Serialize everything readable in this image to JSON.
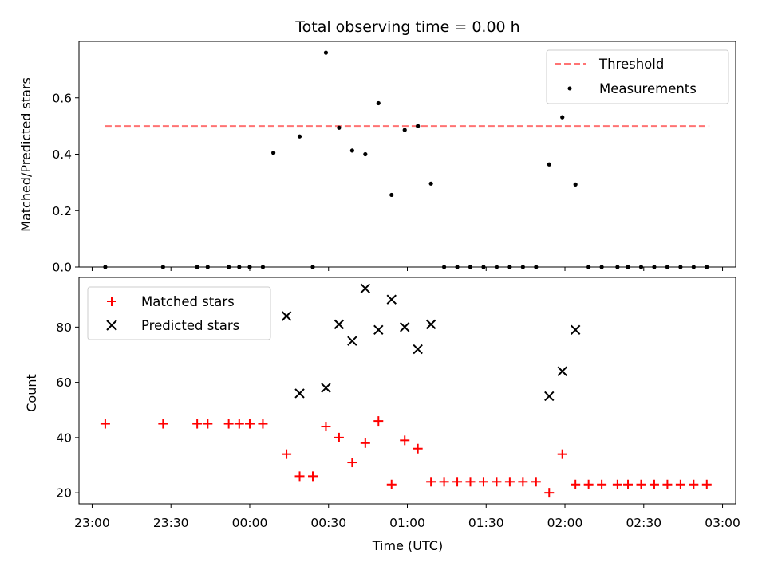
{
  "chart_data": [
    {
      "type": "scatter",
      "title": "Total observing time = 0.00 h",
      "xlabel": "",
      "ylabel": "Matched/Predicted stars",
      "xlim": [
        "22:55",
        "03:05"
      ],
      "ylim": [
        0,
        0.8
      ],
      "yticks": [
        "0.0",
        "0.2",
        "0.4",
        "0.6"
      ],
      "yticks_values": [
        0,
        0.2,
        0.4,
        0.6
      ],
      "legend_placement": "top-right",
      "threshold": {
        "name": "Threshold",
        "value": 0.5,
        "x_range": [
          "23:05",
          "02:55"
        ],
        "color": "#ff7373"
      },
      "series": [
        {
          "name": "Measurements",
          "color": "#000000",
          "points": [
            [
              "23:05",
              0.0
            ],
            [
              "23:27",
              0.0
            ],
            [
              "23:40",
              0.0
            ],
            [
              "23:44",
              0.0
            ],
            [
              "23:52",
              0.0
            ],
            [
              "23:56",
              0.0
            ],
            [
              "00:00",
              0.0
            ],
            [
              "00:05",
              0.0
            ],
            [
              "00:09",
              0.405
            ],
            [
              "00:19",
              0.463
            ],
            [
              "00:24",
              0.0
            ],
            [
              "00:29",
              0.76
            ],
            [
              "00:34",
              0.494
            ],
            [
              "00:39",
              0.413
            ],
            [
              "00:44",
              0.4
            ],
            [
              "00:49",
              0.581
            ],
            [
              "00:54",
              0.256
            ],
            [
              "00:59",
              0.486
            ],
            [
              "01:04",
              0.5
            ],
            [
              "01:09",
              0.296
            ],
            [
              "01:14",
              0.0
            ],
            [
              "01:19",
              0.0
            ],
            [
              "01:24",
              0.0
            ],
            [
              "01:29",
              0.0
            ],
            [
              "01:34",
              0.0
            ],
            [
              "01:39",
              0.0
            ],
            [
              "01:44",
              0.0
            ],
            [
              "01:49",
              0.0
            ],
            [
              "01:54",
              0.364
            ],
            [
              "01:59",
              0.531
            ],
            [
              "02:04",
              0.293
            ],
            [
              "02:09",
              0.0
            ],
            [
              "02:14",
              0.0
            ],
            [
              "02:20",
              0.0
            ],
            [
              "02:24",
              0.0
            ],
            [
              "02:29",
              0.0
            ],
            [
              "02:34",
              0.0
            ],
            [
              "02:39",
              0.0
            ],
            [
              "02:44",
              0.0
            ],
            [
              "02:49",
              0.0
            ],
            [
              "02:54",
              0.0
            ]
          ]
        }
      ]
    },
    {
      "type": "scatter",
      "title": "",
      "xlabel": "Time (UTC)",
      "ylabel": "Count",
      "xlim": [
        "22:55",
        "03:05"
      ],
      "ylim": [
        16,
        98
      ],
      "yticks": [
        "20",
        "40",
        "60",
        "80"
      ],
      "yticks_values": [
        20,
        40,
        60,
        80
      ],
      "xticks": [
        "23:00",
        "23:30",
        "00:00",
        "00:30",
        "01:00",
        "01:30",
        "02:00",
        "02:30",
        "03:00"
      ],
      "legend_placement": "top-left",
      "series": [
        {
          "name": "Matched stars",
          "color": "#ff0000",
          "marker": "plus",
          "points": [
            [
              "23:05",
              45
            ],
            [
              "23:27",
              45
            ],
            [
              "23:40",
              45
            ],
            [
              "23:44",
              45
            ],
            [
              "23:52",
              45
            ],
            [
              "23:56",
              45
            ],
            [
              "00:00",
              45
            ],
            [
              "00:05",
              45
            ],
            [
              "00:14",
              34
            ],
            [
              "00:19",
              26
            ],
            [
              "00:24",
              26
            ],
            [
              "00:29",
              44
            ],
            [
              "00:34",
              40
            ],
            [
              "00:39",
              31
            ],
            [
              "00:44",
              38
            ],
            [
              "00:49",
              46
            ],
            [
              "00:54",
              23
            ],
            [
              "00:59",
              39
            ],
            [
              "01:04",
              36
            ],
            [
              "01:09",
              24
            ],
            [
              "01:14",
              24
            ],
            [
              "01:19",
              24
            ],
            [
              "01:24",
              24
            ],
            [
              "01:29",
              24
            ],
            [
              "01:34",
              24
            ],
            [
              "01:39",
              24
            ],
            [
              "01:44",
              24
            ],
            [
              "01:49",
              24
            ],
            [
              "01:54",
              20
            ],
            [
              "01:59",
              34
            ],
            [
              "02:04",
              23
            ],
            [
              "02:09",
              23
            ],
            [
              "02:14",
              23
            ],
            [
              "02:20",
              23
            ],
            [
              "02:24",
              23
            ],
            [
              "02:29",
              23
            ],
            [
              "02:34",
              23
            ],
            [
              "02:39",
              23
            ],
            [
              "02:44",
              23
            ],
            [
              "02:49",
              23
            ],
            [
              "02:54",
              23
            ]
          ]
        },
        {
          "name": "Predicted stars",
          "color": "#000000",
          "marker": "x",
          "points": [
            [
              "00:14",
              84
            ],
            [
              "00:19",
              56
            ],
            [
              "00:29",
              58
            ],
            [
              "00:34",
              81
            ],
            [
              "00:39",
              75
            ],
            [
              "00:44",
              94
            ],
            [
              "00:49",
              79
            ],
            [
              "00:54",
              90
            ],
            [
              "00:59",
              80
            ],
            [
              "01:04",
              72
            ],
            [
              "01:09",
              81
            ],
            [
              "01:54",
              55
            ],
            [
              "01:59",
              64
            ],
            [
              "02:04",
              79
            ]
          ]
        }
      ]
    }
  ]
}
